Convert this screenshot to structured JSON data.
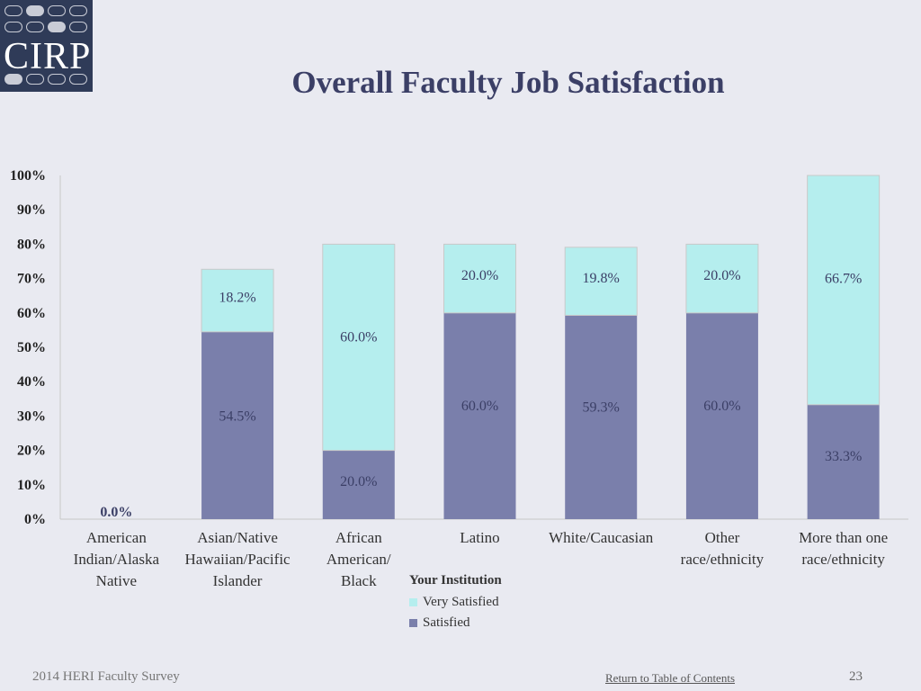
{
  "logo": {
    "text": "CIRP"
  },
  "title": "Overall Faculty Job Satisfaction",
  "chart_data": {
    "type": "bar",
    "stacked": true,
    "title": "Overall Faculty Job Satisfaction",
    "categories": [
      "American Indian/Alaska Native",
      "Asian/Native Hawaiian/Pacific Islander",
      "African American/ Black",
      "Latino",
      "White/Caucasian",
      "Other race/ethnicity",
      "More than one race/ethnicity"
    ],
    "category_lines": [
      [
        "American",
        "Indian/Alaska",
        "Native"
      ],
      [
        "Asian/Native",
        "Hawaiian/Pacific",
        "Islander"
      ],
      [
        "African",
        "American/",
        "Black"
      ],
      [
        "Latino"
      ],
      [
        "White/Caucasian"
      ],
      [
        "Other",
        "race/ethnicity"
      ],
      [
        "More than one",
        "race/ethnicity"
      ]
    ],
    "series": [
      {
        "name": "Satisfied",
        "values": [
          0.0,
          54.5,
          20.0,
          60.0,
          59.3,
          60.0,
          33.3
        ],
        "color": "#7a7fab"
      },
      {
        "name": "Very Satisfied",
        "values": [
          0.0,
          18.2,
          60.0,
          20.0,
          19.8,
          20.0,
          66.7
        ],
        "color": "#b5eeee"
      }
    ],
    "data_labels": {
      "satisfied": [
        "0.0%",
        "54.5%",
        "20.0%",
        "60.0%",
        "59.3%",
        "60.0%",
        "33.3%"
      ],
      "very_satisfied": [
        "",
        "18.2%",
        "60.0%",
        "20.0%",
        "19.8%",
        "20.0%",
        "66.7%"
      ]
    },
    "ylim": [
      0,
      100
    ],
    "yticks": [
      "0%",
      "10%",
      "20%",
      "30%",
      "40%",
      "50%",
      "60%",
      "70%",
      "80%",
      "90%",
      "100%"
    ],
    "legend": {
      "title": "Your Institution",
      "placement": "bottom-center",
      "items": [
        "Very Satisfied",
        "Satisfied"
      ]
    },
    "grid": false
  },
  "footer": {
    "left": "2014 HERI Faculty Survey",
    "link": "Return to Table of Contents",
    "page": "23"
  }
}
